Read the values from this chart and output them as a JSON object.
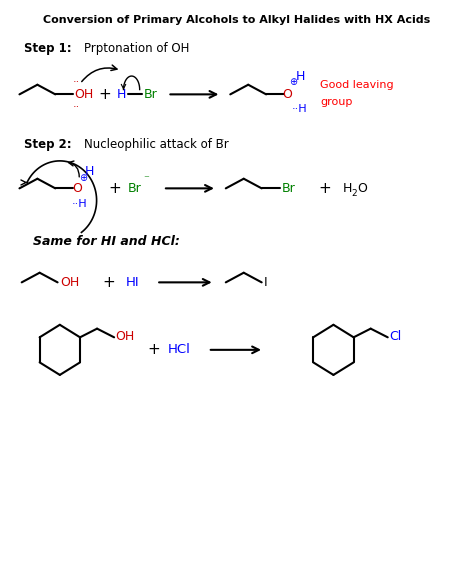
{
  "title": "Conversion of Primary Alcohols to Alkyl Halides with HX Acids",
  "bg_color": "#ffffff",
  "figsize": [
    4.74,
    5.84
  ],
  "dpi": 100,
  "step1_label": "Step 1:",
  "step1_text": "Prptonation of OH",
  "step2_label": "Step 2:",
  "step2_text": "Nucleophilic attack of Br",
  "same_label": "Same for HI and HCl:",
  "good_leaving1": "Good leaving",
  "good_leaving2": "group"
}
